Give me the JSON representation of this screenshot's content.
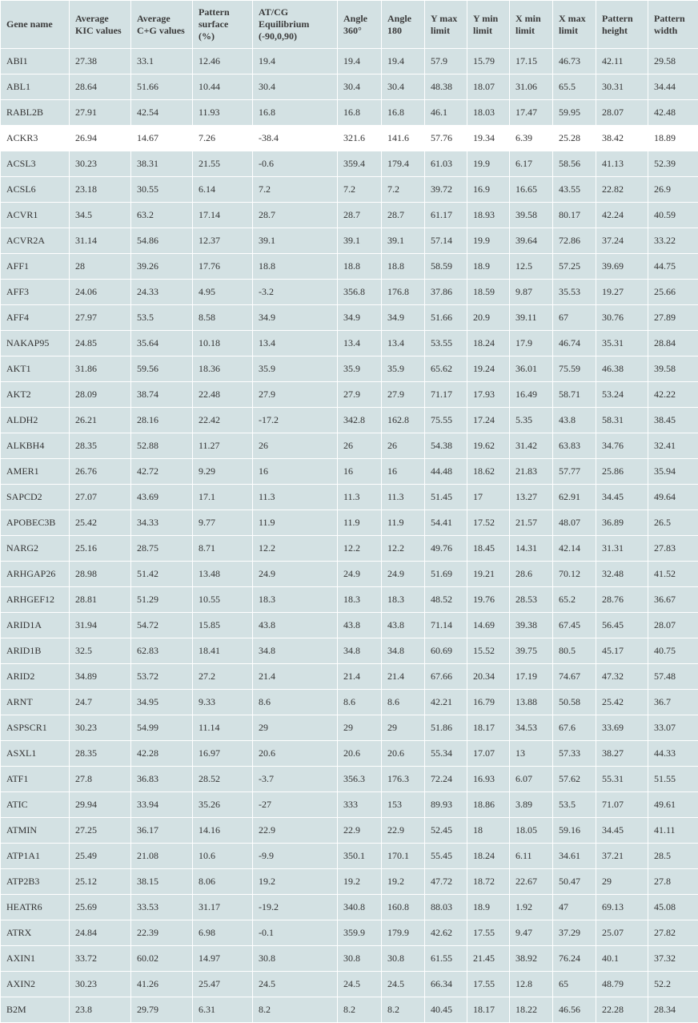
{
  "highlight_gene": "ACKR3",
  "columns": [
    "Gene name",
    "Average KIC values",
    "Average C+G values",
    "Pattern surface (%)",
    "AT/CG Equilibrium (-90,0,90)",
    "Angle 360°",
    "Angle 180",
    "Y max limit",
    "Y min limit",
    "X min limit",
    "X max limit",
    "Pattern height",
    "Pattern width"
  ],
  "rows": [
    [
      "ABI1",
      "27.38",
      "33.1",
      "12.46",
      "19.4",
      "19.4",
      "19.4",
      "57.9",
      "15.79",
      "17.15",
      "46.73",
      "42.11",
      "29.58"
    ],
    [
      "ABL1",
      "28.64",
      "51.66",
      "10.44",
      "30.4",
      "30.4",
      "30.4",
      "48.38",
      "18.07",
      "31.06",
      "65.5",
      "30.31",
      "34.44"
    ],
    [
      "RABL2B",
      "27.91",
      "42.54",
      "11.93",
      "16.8",
      "16.8",
      "16.8",
      "46.1",
      "18.03",
      "17.47",
      "59.95",
      "28.07",
      "42.48"
    ],
    [
      "ACKR3",
      "26.94",
      "14.67",
      "7.26",
      "-38.4",
      "321.6",
      "141.6",
      "57.76",
      "19.34",
      "6.39",
      "25.28",
      "38.42",
      "18.89"
    ],
    [
      "ACSL3",
      "30.23",
      "38.31",
      "21.55",
      "-0.6",
      "359.4",
      "179.4",
      "61.03",
      "19.9",
      "6.17",
      "58.56",
      "41.13",
      "52.39"
    ],
    [
      "ACSL6",
      "23.18",
      "30.55",
      "6.14",
      "7.2",
      "7.2",
      "7.2",
      "39.72",
      "16.9",
      "16.65",
      "43.55",
      "22.82",
      "26.9"
    ],
    [
      "ACVR1",
      "34.5",
      "63.2",
      "17.14",
      "28.7",
      "28.7",
      "28.7",
      "61.17",
      "18.93",
      "39.58",
      "80.17",
      "42.24",
      "40.59"
    ],
    [
      "ACVR2A",
      "31.14",
      "54.86",
      "12.37",
      "39.1",
      "39.1",
      "39.1",
      "57.14",
      "19.9",
      "39.64",
      "72.86",
      "37.24",
      "33.22"
    ],
    [
      "AFF1",
      "28",
      "39.26",
      "17.76",
      "18.8",
      "18.8",
      "18.8",
      "58.59",
      "18.9",
      "12.5",
      "57.25",
      "39.69",
      "44.75"
    ],
    [
      "AFF3",
      "24.06",
      "24.33",
      "4.95",
      "-3.2",
      "356.8",
      "176.8",
      "37.86",
      "18.59",
      "9.87",
      "35.53",
      "19.27",
      "25.66"
    ],
    [
      "AFF4",
      "27.97",
      "53.5",
      "8.58",
      "34.9",
      "34.9",
      "34.9",
      "51.66",
      "20.9",
      "39.11",
      "67",
      "30.76",
      "27.89"
    ],
    [
      "NAKAP95",
      "24.85",
      "35.64",
      "10.18",
      "13.4",
      "13.4",
      "13.4",
      "53.55",
      "18.24",
      "17.9",
      "46.74",
      "35.31",
      "28.84"
    ],
    [
      "AKT1",
      "31.86",
      "59.56",
      "18.36",
      "35.9",
      "35.9",
      "35.9",
      "65.62",
      "19.24",
      "36.01",
      "75.59",
      "46.38",
      "39.58"
    ],
    [
      "AKT2",
      "28.09",
      "38.74",
      "22.48",
      "27.9",
      "27.9",
      "27.9",
      "71.17",
      "17.93",
      "16.49",
      "58.71",
      "53.24",
      "42.22"
    ],
    [
      "ALDH2",
      "26.21",
      "28.16",
      "22.42",
      "-17.2",
      "342.8",
      "162.8",
      "75.55",
      "17.24",
      "5.35",
      "43.8",
      "58.31",
      "38.45"
    ],
    [
      "ALKBH4",
      "28.35",
      "52.88",
      "11.27",
      "26",
      "26",
      "26",
      "54.38",
      "19.62",
      "31.42",
      "63.83",
      "34.76",
      "32.41"
    ],
    [
      "AMER1",
      "26.76",
      "42.72",
      "9.29",
      "16",
      "16",
      "16",
      "44.48",
      "18.62",
      "21.83",
      "57.77",
      "25.86",
      "35.94"
    ],
    [
      "SAPCD2",
      "27.07",
      "43.69",
      "17.1",
      "11.3",
      "11.3",
      "11.3",
      "51.45",
      "17",
      "13.27",
      "62.91",
      "34.45",
      "49.64"
    ],
    [
      "APOBEC3B",
      "25.42",
      "34.33",
      "9.77",
      "11.9",
      "11.9",
      "11.9",
      "54.41",
      "17.52",
      "21.57",
      "48.07",
      "36.89",
      "26.5"
    ],
    [
      "NARG2",
      "25.16",
      "28.75",
      "8.71",
      "12.2",
      "12.2",
      "12.2",
      "49.76",
      "18.45",
      "14.31",
      "42.14",
      "31.31",
      "27.83"
    ],
    [
      "ARHGAP26",
      "28.98",
      "51.42",
      "13.48",
      "24.9",
      "24.9",
      "24.9",
      "51.69",
      "19.21",
      "28.6",
      "70.12",
      "32.48",
      "41.52"
    ],
    [
      "ARHGEF12",
      "28.81",
      "51.29",
      "10.55",
      "18.3",
      "18.3",
      "18.3",
      "48.52",
      "19.76",
      "28.53",
      "65.2",
      "28.76",
      "36.67"
    ],
    [
      "ARID1A",
      "31.94",
      "54.72",
      "15.85",
      "43.8",
      "43.8",
      "43.8",
      "71.14",
      "14.69",
      "39.38",
      "67.45",
      "56.45",
      "28.07"
    ],
    [
      "ARID1B",
      "32.5",
      "62.83",
      "18.41",
      "34.8",
      "34.8",
      "34.8",
      "60.69",
      "15.52",
      "39.75",
      "80.5",
      "45.17",
      "40.75"
    ],
    [
      "ARID2",
      "34.89",
      "53.72",
      "27.2",
      "21.4",
      "21.4",
      "21.4",
      "67.66",
      "20.34",
      "17.19",
      "74.67",
      "47.32",
      "57.48"
    ],
    [
      "ARNT",
      "24.7",
      "34.95",
      "9.33",
      "8.6",
      "8.6",
      "8.6",
      "42.21",
      "16.79",
      "13.88",
      "50.58",
      "25.42",
      "36.7"
    ],
    [
      "ASPSCR1",
      "30.23",
      "54.99",
      "11.14",
      "29",
      "29",
      "29",
      "51.86",
      "18.17",
      "34.53",
      "67.6",
      "33.69",
      "33.07"
    ],
    [
      "ASXL1",
      "28.35",
      "42.28",
      "16.97",
      "20.6",
      "20.6",
      "20.6",
      "55.34",
      "17.07",
      "13",
      "57.33",
      "38.27",
      "44.33"
    ],
    [
      "ATF1",
      "27.8",
      "36.83",
      "28.52",
      "-3.7",
      "356.3",
      "176.3",
      "72.24",
      "16.93",
      "6.07",
      "57.62",
      "55.31",
      "51.55"
    ],
    [
      "ATIC",
      "29.94",
      "33.94",
      "35.26",
      "-27",
      "333",
      "153",
      "89.93",
      "18.86",
      "3.89",
      "53.5",
      "71.07",
      "49.61"
    ],
    [
      "ATMIN",
      "27.25",
      "36.17",
      "14.16",
      "22.9",
      "22.9",
      "22.9",
      "52.45",
      "18",
      "18.05",
      "59.16",
      "34.45",
      "41.11"
    ],
    [
      "ATP1A1",
      "25.49",
      "21.08",
      "10.6",
      "-9.9",
      "350.1",
      "170.1",
      "55.45",
      "18.24",
      "6.11",
      "34.61",
      "37.21",
      "28.5"
    ],
    [
      "ATP2B3",
      "25.12",
      "38.15",
      "8.06",
      "19.2",
      "19.2",
      "19.2",
      "47.72",
      "18.72",
      "22.67",
      "50.47",
      "29",
      "27.8"
    ],
    [
      "HEATR6",
      "25.69",
      "33.53",
      "31.17",
      "-19.2",
      "340.8",
      "160.8",
      "88.03",
      "18.9",
      "1.92",
      "47",
      "69.13",
      "45.08"
    ],
    [
      "ATRX",
      "24.84",
      "22.39",
      "6.98",
      "-0.1",
      "359.9",
      "179.9",
      "42.62",
      "17.55",
      "9.47",
      "37.29",
      "25.07",
      "27.82"
    ],
    [
      "AXIN1",
      "33.72",
      "60.02",
      "14.97",
      "30.8",
      "30.8",
      "30.8",
      "61.55",
      "21.45",
      "38.92",
      "76.24",
      "40.1",
      "37.32"
    ],
    [
      "AXIN2",
      "30.23",
      "41.26",
      "25.47",
      "24.5",
      "24.5",
      "24.5",
      "66.34",
      "17.55",
      "12.8",
      "65",
      "48.79",
      "52.2"
    ],
    [
      "B2M",
      "23.8",
      "29.79",
      "6.31",
      "8.2",
      "8.2",
      "8.2",
      "40.45",
      "18.17",
      "18.22",
      "46.56",
      "22.28",
      "28.34"
    ]
  ]
}
